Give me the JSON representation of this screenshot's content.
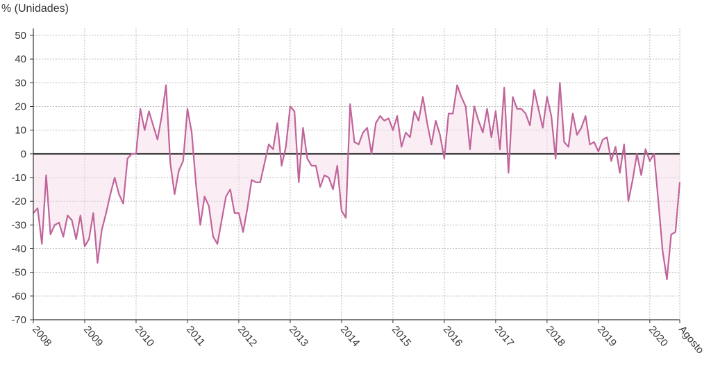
{
  "chart_data": {
    "type": "line",
    "title": "",
    "ylabel": "% (Unidades)",
    "xlabel": "",
    "ylim": [
      -70,
      50
    ],
    "yticks": [
      50,
      40,
      30,
      20,
      10,
      0,
      -10,
      -20,
      -30,
      -40,
      -50,
      -60,
      -70
    ],
    "yticklabels": [
      "50",
      "40",
      "30",
      "20",
      "10",
      "0",
      "-10",
      "-20",
      "-30",
      "-40",
      "-50",
      "-60",
      "-70"
    ],
    "xticklabels": [
      "2008",
      "2009",
      "2010",
      "2011",
      "2012",
      "2013",
      "2014",
      "2015",
      "2016",
      "2017",
      "2018",
      "2019",
      "2020",
      "Agosto"
    ],
    "grid": true,
    "colors": {
      "line": "#c0649a",
      "fill": "#f3d6e6",
      "zero": "#222222",
      "grid": "#bbbbbb",
      "axis": "#333333"
    },
    "series": [
      {
        "values": [
          -25,
          -23,
          -38,
          -9,
          -34,
          -30,
          -29,
          -35,
          -26,
          -28,
          -36,
          -26,
          -39,
          -36,
          -25,
          -46,
          -32,
          -25,
          -17,
          -10,
          -17,
          -21,
          -2,
          0,
          0,
          19,
          10,
          18,
          12,
          6,
          16,
          29,
          -4,
          -17,
          -7,
          -3,
          19,
          9,
          -13,
          -30,
          -18,
          -22,
          -35,
          -38,
          -28,
          -18,
          -15,
          -25,
          -25,
          -33,
          -23,
          -11,
          -12,
          -12,
          -4,
          4,
          2,
          13,
          -5,
          3,
          20,
          18,
          -12,
          11,
          -2,
          -5,
          -5,
          -14,
          -9,
          -10,
          -15,
          -5,
          -24,
          -27,
          21,
          5,
          4,
          9,
          11,
          0,
          13,
          16,
          14,
          15,
          10,
          16,
          3,
          9,
          7,
          18,
          14,
          24,
          13,
          4,
          14,
          8,
          -2,
          17,
          17,
          29,
          24,
          20,
          2,
          20,
          14,
          9,
          19,
          7,
          18,
          2,
          28,
          -8,
          24,
          19,
          19,
          17,
          12,
          27,
          19,
          11,
          24,
          16,
          -2,
          30,
          5,
          3,
          17,
          8,
          11,
          16,
          4,
          5,
          1,
          6,
          7,
          -3,
          3,
          -8,
          4,
          -20,
          -11,
          0,
          -9,
          2,
          -3,
          0,
          -20,
          -41,
          -53,
          -34,
          -33,
          -12
        ]
      }
    ]
  }
}
